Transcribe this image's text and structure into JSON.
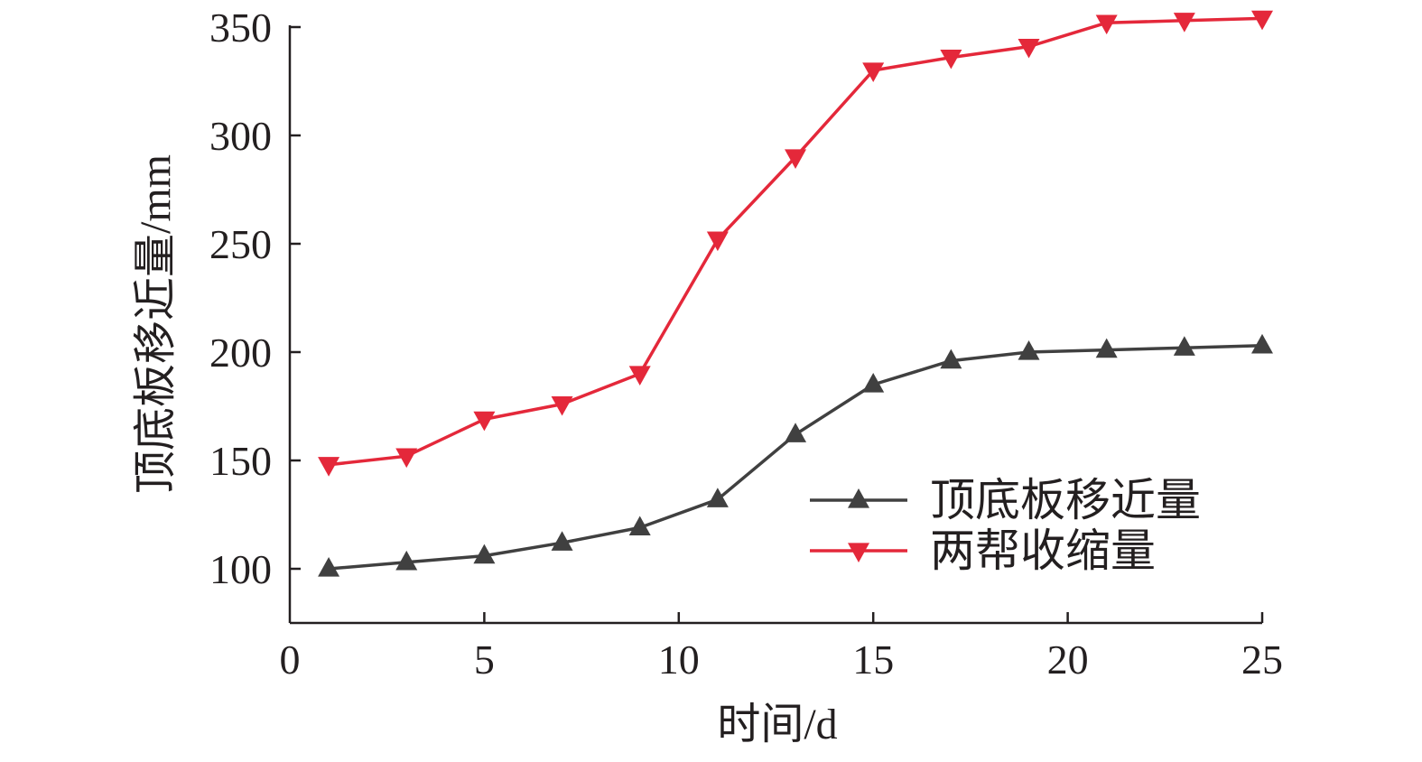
{
  "chart_data": {
    "type": "line",
    "xlabel": "时间/d",
    "ylabel": "顶底板移近量/mm",
    "xlim": [
      0,
      25
    ],
    "ylim": [
      75,
      350
    ],
    "xticks": [
      0,
      5,
      10,
      15,
      20,
      25
    ],
    "yticks": [
      100,
      150,
      200,
      250,
      300,
      350
    ],
    "grid": false,
    "legend_position": "bottom-right",
    "x": [
      1,
      3,
      5,
      7,
      9,
      11,
      13,
      15,
      17,
      19,
      21,
      23,
      25
    ],
    "series": [
      {
        "name": "顶底板移近量",
        "marker": "triangle-up",
        "color": "#404040",
        "values": [
          100,
          103,
          106,
          112,
          119,
          132,
          162,
          185,
          196,
          200,
          201,
          202,
          203
        ]
      },
      {
        "name": "两帮收缩量",
        "marker": "triangle-down",
        "color": "#e4283a",
        "values": [
          148,
          152,
          169,
          176,
          190,
          252,
          290,
          330,
          336,
          341,
          352,
          353,
          354
        ]
      }
    ]
  }
}
